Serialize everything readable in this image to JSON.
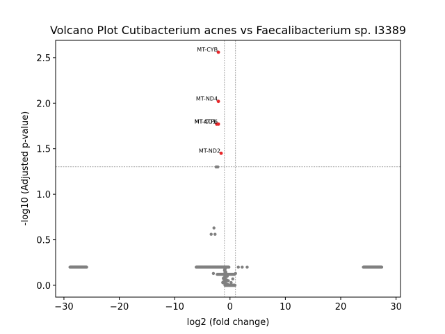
{
  "chart_data": {
    "type": "scatter",
    "title": "Volcano Plot Cutibacterium acnes vs Faecalibacterium sp. I3389",
    "xlabel": "log2 (fold change)",
    "ylabel": "-log10 (Adjusted p-value)",
    "xlim": [
      -31.5,
      30.8
    ],
    "ylim": [
      -0.13,
      2.69
    ],
    "xticks": [
      -30,
      -20,
      -10,
      0,
      10,
      20,
      30
    ],
    "xtick_labels": [
      "−30",
      "−20",
      "−10",
      "0",
      "10",
      "20",
      "30"
    ],
    "yticks": [
      0.0,
      0.5,
      1.0,
      1.5,
      2.0,
      2.5
    ],
    "ytick_labels": [
      "0.0",
      "0.5",
      "1.0",
      "1.5",
      "2.0",
      "2.5"
    ],
    "grid": false,
    "legend": "none",
    "colors": {
      "significant": "#e8262a",
      "not_significant": "#808080",
      "threshold_line": "#808080"
    },
    "thresholds": {
      "log2fc": [
        -1,
        1
      ],
      "neg_log10_padj": 1.301
    },
    "significant_points": [
      {
        "label": "MT-CYB",
        "x": -2.1,
        "y": 2.56
      },
      {
        "label": "MT-ND4",
        "x": -2.1,
        "y": 2.02
      },
      {
        "label": "MT-CO1",
        "x": -2.4,
        "y": 1.77
      },
      {
        "label": "MT-ATP6",
        "x": -2.1,
        "y": 1.77
      },
      {
        "label": "MT-ND2",
        "x": -1.6,
        "y": 1.45
      }
    ],
    "background_points": [
      {
        "x": -2.5,
        "y": 1.3
      },
      {
        "x": -2.2,
        "y": 1.3
      },
      {
        "x": -2.9,
        "y": 0.63
      },
      {
        "x": -3.4,
        "y": 0.56
      },
      {
        "x": -2.7,
        "y": 0.56
      },
      {
        "x": 3.1,
        "y": 0.2
      },
      {
        "x": 2.2,
        "y": 0.2
      },
      {
        "x": 1.5,
        "y": 0.2
      },
      {
        "x": -3.0,
        "y": 0.13
      },
      {
        "x": 1.0,
        "y": 0.13
      },
      {
        "x": -0.5,
        "y": 0.1
      },
      {
        "x": 0.5,
        "y": 0.07
      },
      {
        "x": -0.3,
        "y": 0.05
      },
      {
        "x": 0.2,
        "y": 0.03
      },
      {
        "x": 0.0,
        "y": 0.0
      },
      {
        "x": -0.8,
        "y": 0.0
      },
      {
        "x": 0.8,
        "y": 0.0
      }
    ],
    "background_bands": [
      {
        "x_from": -28.9,
        "x_to": -25.9,
        "y": 0.2
      },
      {
        "x_from": 24.1,
        "x_to": 27.4,
        "y": 0.2
      },
      {
        "x_from": -6.1,
        "x_to": -0.2,
        "y": 0.2
      },
      {
        "x_from": -2.3,
        "x_to": 0.8,
        "y": 0.12
      }
    ]
  }
}
